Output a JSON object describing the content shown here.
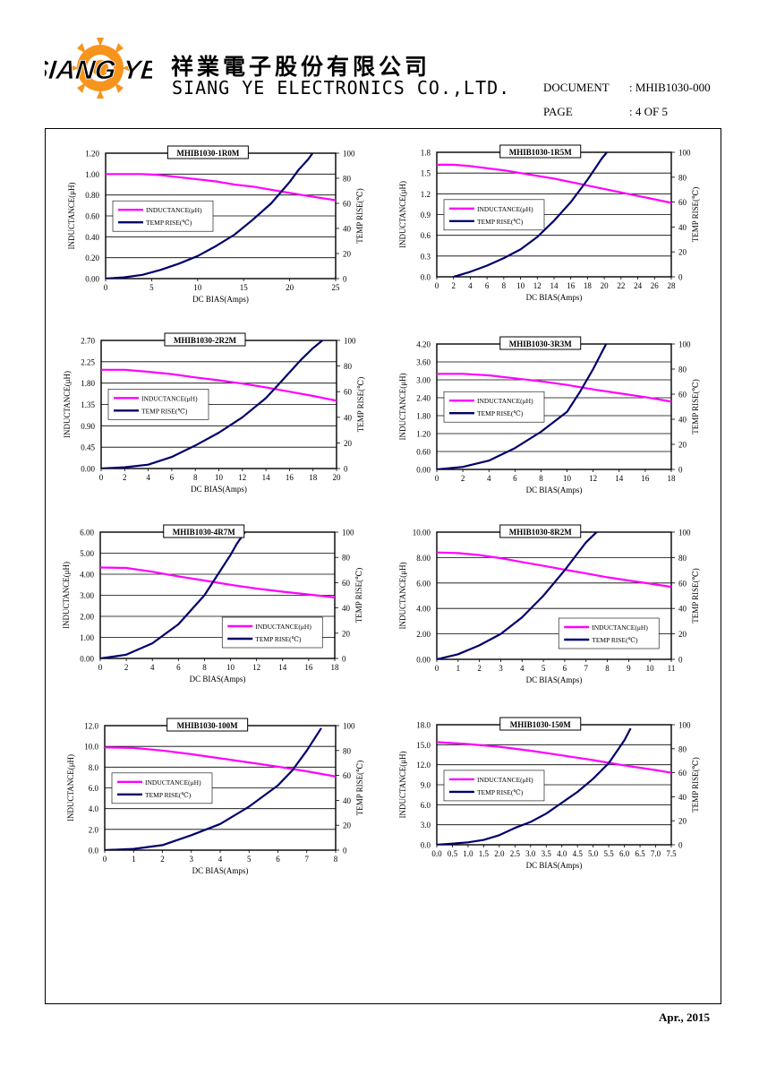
{
  "header": {
    "logo_text": "SIANG YE",
    "company_cn": "祥業電子股份有限公司",
    "company_en": "SIANG YE ELECTRONICS CO.,LTD.",
    "document_label": "DOCUMENT",
    "document_value": ": MHIB1030-000",
    "page_label": "PAGE",
    "page_value": ": 4 OF 5"
  },
  "footer": {
    "date": "Apr., 2015"
  },
  "colors": {
    "inductance": "#ff00ff",
    "temp_rise": "#00006b",
    "grid": "#000000",
    "logo_orange": "#f7941d",
    "logo_black": "#000000"
  },
  "chart_data": [
    {
      "type": "line",
      "title": "MHIB1030-1R0M",
      "xlabel": "DC BIAS(Amps)",
      "ylabel": "INDUCTANCE(μH)",
      "y2label": "TEMP RISE(℃)",
      "xlim": [
        0,
        25
      ],
      "xticks": [
        0,
        5,
        10,
        15,
        20,
        25
      ],
      "ylim": [
        0,
        1.2
      ],
      "yticks": [
        "0.00",
        "0.20",
        "0.40",
        "0.60",
        "0.80",
        "1.00",
        "1.20"
      ],
      "y2lim": [
        0,
        100
      ],
      "y2ticks": [
        "0",
        "20",
        "40",
        "60",
        "80",
        "100"
      ],
      "legend": [
        "INDUCTANCE(μH)",
        "TEMP RISE(℃)"
      ],
      "legend_position": "middle-left",
      "series": [
        {
          "name": "INDUCTANCE(μH)",
          "axis": "left",
          "x": [
            0,
            2,
            4,
            6,
            8,
            10,
            12,
            14,
            16,
            18,
            20,
            22,
            25
          ],
          "y": [
            1.0,
            1.0,
            1.0,
            0.99,
            0.97,
            0.95,
            0.93,
            0.9,
            0.88,
            0.85,
            0.82,
            0.79,
            0.75
          ]
        },
        {
          "name": "TEMP RISE(℃)",
          "axis": "right",
          "x": [
            0,
            2,
            4,
            6,
            8,
            10,
            12,
            14,
            16,
            18,
            20,
            21,
            22,
            22.5
          ],
          "y": [
            0,
            1,
            3,
            7,
            12,
            18,
            26,
            35,
            47,
            60,
            77,
            87,
            95,
            100
          ]
        }
      ]
    },
    {
      "type": "line",
      "title": "MHIB1030-1R5M",
      "xlabel": "DC BIAS(Amps)",
      "ylabel": "INDUCTANCE(μH)",
      "y2label": "TEMP RISE(℃)",
      "xlim": [
        0,
        28
      ],
      "xticks": [
        0,
        2,
        4,
        6,
        8,
        10,
        12,
        14,
        16,
        18,
        20,
        22,
        24,
        26,
        28
      ],
      "ylim": [
        0,
        1.8
      ],
      "yticks": [
        "0.0",
        "0.3",
        "0.6",
        "0.9",
        "1.2",
        "1.5",
        "1.8"
      ],
      "y2lim": [
        0,
        100
      ],
      "y2ticks": [
        "0",
        "20",
        "40",
        "60",
        "80",
        "100"
      ],
      "legend": [
        "INDUCTANCE(μH)",
        "TEMP RISE(℃)"
      ],
      "legend_position": "middle-left",
      "series": [
        {
          "name": "INDUCTANCE(μH)",
          "axis": "left",
          "x": [
            0,
            2,
            4,
            6,
            8,
            10,
            12,
            14,
            16,
            18,
            20,
            22,
            24,
            26,
            28
          ],
          "y": [
            1.62,
            1.62,
            1.6,
            1.57,
            1.54,
            1.5,
            1.46,
            1.42,
            1.37,
            1.32,
            1.27,
            1.22,
            1.17,
            1.12,
            1.07
          ]
        },
        {
          "name": "TEMP RISE(℃)",
          "axis": "right",
          "x": [
            2,
            4,
            6,
            8,
            10,
            12,
            14,
            16,
            17,
            18,
            19,
            19.7,
            20.3
          ],
          "y": [
            0,
            4,
            9,
            15,
            22,
            32,
            45,
            60,
            69,
            78,
            88,
            95,
            100
          ]
        }
      ]
    },
    {
      "type": "line",
      "title": "MHIB1030-2R2M",
      "xlabel": "DC BIAS(Amps)",
      "ylabel": "INDUCTANCE(μH)",
      "y2label": "TEMP RISE(℃)",
      "xlim": [
        0,
        20
      ],
      "xticks": [
        0,
        2,
        4,
        6,
        8,
        10,
        12,
        14,
        16,
        18,
        20
      ],
      "ylim": [
        0,
        2.7
      ],
      "yticks": [
        "0.00",
        "0.45",
        "0.90",
        "1.35",
        "1.80",
        "2.25",
        "2.70"
      ],
      "y2lim": [
        0,
        100
      ],
      "y2ticks": [
        "0",
        "20",
        "40",
        "60",
        "80",
        "100"
      ],
      "legend": [
        "INDUCTANCE(μH)",
        "TEMP RISE(℃)"
      ],
      "legend_position": "middle-left",
      "series": [
        {
          "name": "INDUCTANCE(μH)",
          "axis": "left",
          "x": [
            0,
            2,
            4,
            6,
            8,
            10,
            12,
            14,
            16,
            18,
            20
          ],
          "y": [
            2.08,
            2.08,
            2.04,
            1.99,
            1.92,
            1.86,
            1.79,
            1.71,
            1.62,
            1.53,
            1.43
          ]
        },
        {
          "name": "TEMP RISE(℃)",
          "axis": "right",
          "x": [
            0,
            2,
            4,
            6,
            8,
            10,
            12,
            14,
            15,
            16,
            17,
            18,
            18.8
          ],
          "y": [
            0,
            1,
            3,
            9,
            18,
            28,
            40,
            55,
            65,
            75,
            85,
            94,
            100
          ]
        }
      ]
    },
    {
      "type": "line",
      "title": "MHIB1030-3R3M",
      "xlabel": "DC BIAS(Amps)",
      "ylabel": "INDUCTANCE(μH)",
      "y2label": "TEMP RISE(℃)",
      "xlim": [
        0,
        18
      ],
      "xticks": [
        0,
        2,
        4,
        6,
        8,
        10,
        12,
        14,
        16,
        18
      ],
      "ylim": [
        0,
        4.2
      ],
      "yticks": [
        "0.00",
        "0.60",
        "1.20",
        "1.80",
        "2.40",
        "3.00",
        "3.60",
        "4.20"
      ],
      "y2lim": [
        0,
        100
      ],
      "y2ticks": [
        "0",
        "20",
        "40",
        "60",
        "80",
        "100"
      ],
      "legend": [
        "INDUCTANCE(μH)",
        "TEMP RISE(℃)"
      ],
      "legend_position": "middle-left",
      "series": [
        {
          "name": "INDUCTANCE(μH)",
          "axis": "left",
          "x": [
            0,
            2,
            4,
            6,
            8,
            10,
            12,
            14,
            16,
            18
          ],
          "y": [
            3.2,
            3.2,
            3.15,
            3.05,
            2.95,
            2.83,
            2.68,
            2.55,
            2.42,
            2.27
          ]
        },
        {
          "name": "TEMP RISE(℃)",
          "axis": "right",
          "x": [
            0,
            2,
            4,
            6,
            8,
            10,
            11,
            12,
            12.5,
            13
          ],
          "y": [
            0,
            2,
            7,
            17,
            30,
            46,
            62,
            80,
            90,
            100
          ]
        }
      ]
    },
    {
      "type": "line",
      "title": "MHIB1030-4R7M",
      "xlabel": "DC BIAS(Amps)",
      "ylabel": "INDUCTANCE(μH)",
      "y2label": "TEMP RISE(℃)",
      "xlim": [
        0,
        18
      ],
      "xticks": [
        0,
        2,
        4,
        6,
        8,
        10,
        12,
        14,
        16,
        18
      ],
      "ylim": [
        0,
        6
      ],
      "yticks": [
        "0.00",
        "1.00",
        "2.00",
        "3.00",
        "4.00",
        "5.00",
        "6.00"
      ],
      "y2lim": [
        0,
        100
      ],
      "y2ticks": [
        "0",
        "20",
        "40",
        "60",
        "80",
        "100"
      ],
      "legend": [
        "INDUCTANCE(μH)",
        "TEMP RISE(℃)"
      ],
      "legend_position": "bottom-right",
      "series": [
        {
          "name": "INDUCTANCE(μH)",
          "axis": "left",
          "x": [
            0,
            2,
            4,
            6,
            8,
            10,
            12,
            14,
            16,
            18
          ],
          "y": [
            4.32,
            4.3,
            4.12,
            3.9,
            3.7,
            3.5,
            3.32,
            3.17,
            3.04,
            2.9
          ]
        },
        {
          "name": "TEMP RISE(℃)",
          "axis": "right",
          "x": [
            0,
            2,
            4,
            6,
            8,
            9,
            10,
            10.5,
            11.1
          ],
          "y": [
            0,
            3,
            12,
            27,
            50,
            66,
            82,
            91,
            100
          ]
        }
      ]
    },
    {
      "type": "line",
      "title": "MHIB1030-8R2M",
      "xlabel": "DC BIAS(Amps)",
      "ylabel": "INDUCTANCE(μH)",
      "y2label": "TEMP RISE(℃)",
      "xlim": [
        0,
        11
      ],
      "xticks": [
        0,
        1,
        2,
        3,
        4,
        5,
        6,
        7,
        8,
        9,
        10,
        11
      ],
      "ylim": [
        0,
        10
      ],
      "yticks": [
        "0.00",
        "2.00",
        "4.00",
        "6.00",
        "8.00",
        "10.00"
      ],
      "y2lim": [
        0,
        100
      ],
      "y2ticks": [
        "0",
        "20",
        "40",
        "60",
        "80",
        "100"
      ],
      "legend": [
        "INDUCTANCE(μH)",
        "TEMP RISE(℃)"
      ],
      "legend_position": "bottom-right",
      "series": [
        {
          "name": "INDUCTANCE(μH)",
          "axis": "left",
          "x": [
            0,
            1,
            2,
            3,
            4,
            5,
            6,
            7,
            8,
            9,
            10,
            11
          ],
          "y": [
            8.4,
            8.35,
            8.2,
            7.95,
            7.65,
            7.35,
            7.05,
            6.75,
            6.45,
            6.2,
            5.95,
            5.7
          ]
        },
        {
          "name": "TEMP RISE(℃)",
          "axis": "right",
          "x": [
            0,
            1,
            2,
            3,
            4,
            5,
            6,
            6.5,
            7,
            7.5
          ],
          "y": [
            0,
            4,
            11,
            20,
            33,
            50,
            70,
            81,
            92,
            100
          ]
        }
      ]
    },
    {
      "type": "line",
      "title": "MHIB1030-100M",
      "xlabel": "DC BIAS(Amps)",
      "ylabel": "INDUCTANCE(μH)",
      "y2label": "TEMP RISE(℃)",
      "xlim": [
        0,
        8
      ],
      "xticks": [
        0,
        1,
        2,
        3,
        4,
        5,
        6,
        7,
        8
      ],
      "ylim": [
        0,
        12
      ],
      "yticks": [
        "0.0",
        "2.0",
        "4.0",
        "6.0",
        "8.0",
        "10.0",
        "12.0"
      ],
      "y2lim": [
        0,
        100
      ],
      "y2ticks": [
        "0",
        "20",
        "40",
        "60",
        "80",
        "100"
      ],
      "legend": [
        "INDUCTANCE(μH)",
        "TEMP RISE(℃)"
      ],
      "legend_position": "middle-left",
      "series": [
        {
          "name": "INDUCTANCE(μH)",
          "axis": "left",
          "x": [
            0,
            1,
            2,
            3,
            4,
            5,
            6,
            7,
            8
          ],
          "y": [
            9.9,
            9.85,
            9.6,
            9.25,
            8.85,
            8.45,
            8.05,
            7.6,
            7.1
          ]
        },
        {
          "name": "TEMP RISE(℃)",
          "axis": "right",
          "x": [
            0,
            1,
            2,
            3,
            4,
            5,
            6,
            6.5,
            7,
            7.5
          ],
          "y": [
            0,
            1,
            4,
            12,
            21,
            35,
            52,
            64,
            80,
            98
          ]
        }
      ]
    },
    {
      "type": "line",
      "title": "MHIB1030-150M",
      "xlabel": "DC BIAS(Amps)",
      "ylabel": "INDUCTANCE(μH)",
      "y2label": "TEMP RISE(℃)",
      "xlim": [
        0,
        7.5
      ],
      "xticks": [
        "0.0",
        "0.5",
        "1.0",
        "1.5",
        "2.0",
        "2.5",
        "3.0",
        "3.5",
        "4.0",
        "4.5",
        "5.0",
        "5.5",
        "6.0",
        "6.5",
        "7.0",
        "7.5"
      ],
      "ylim": [
        0,
        18
      ],
      "yticks": [
        "0.0",
        "3.0",
        "6.0",
        "9.0",
        "12.0",
        "15.0",
        "18.0"
      ],
      "y2lim": [
        0,
        100
      ],
      "y2ticks": [
        "0",
        "20",
        "40",
        "60",
        "80",
        "100"
      ],
      "legend": [
        "INDUCTANCE(μH)",
        "TEMP RISE(℃)"
      ],
      "legend_position": "middle-left",
      "series": [
        {
          "name": "INDUCTANCE(μH)",
          "axis": "left",
          "x": [
            0,
            1,
            2,
            3,
            4,
            5,
            6,
            7,
            7.5
          ],
          "y": [
            15.4,
            15.1,
            14.7,
            14.1,
            13.4,
            12.7,
            11.9,
            11.2,
            10.8
          ]
        },
        {
          "name": "TEMP RISE(℃)",
          "axis": "right",
          "x": [
            0,
            0.5,
            1,
            1.5,
            2,
            2.5,
            3,
            3.5,
            4,
            4.5,
            5,
            5.5,
            6,
            6.2
          ],
          "y": [
            0,
            1,
            2,
            4,
            8,
            14,
            19,
            26,
            35,
            44,
            55,
            68,
            87,
            97
          ]
        }
      ]
    }
  ]
}
